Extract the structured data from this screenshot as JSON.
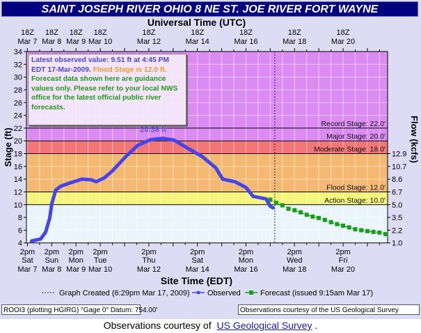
{
  "title": "SAINT JOSEPH RIVER OHIO 8 NE ST. JOE RIVER FORT WAYNE",
  "info": {
    "observed": "Latest observed value: 9.51 ft at 4:45 PM EDT 17-Mar-2009.",
    "flood": "Flood Stage is 12.0 ft.",
    "disclaimer": "Forecast data shown here are guidance values only. Please refer to your local NWS office for the latest official public river forecasts."
  },
  "legend": {
    "created": "Graph Created (6:29pm Mar 17, 2009)",
    "observed": "Observed",
    "forecast": "Forecast (issued 9:15am Mar 17)"
  },
  "footer": {
    "left": "ROOI3 (plotting HGIRG)  \"Gage 0\" Datum: 754.00'",
    "right": "Observations courtesy of the  US Geological Survey",
    "credit_prefix": "Observations courtesy of",
    "credit_link": "US Geological Survey",
    "credit_suffix": "."
  },
  "colors": {
    "observed": "#4545ee",
    "forecast": "#1c9c1c",
    "record": "#da8cf2",
    "major": "#da8cf2",
    "moderate": "#f27676",
    "flood": "#f5b870",
    "action": "#f5f57c",
    "normal": "#e9f5fb"
  },
  "chart_data": {
    "type": "line",
    "title": "SAINT JOSEPH RIVER OHIO 8 NE ST. JOE RIVER FORT WAYNE",
    "top_xlabel": "Universal Time (UTC)",
    "xlabel": "Site Time (EDT)",
    "ylabel": "Stage (ft)",
    "y2label": "Flow (kcfs)",
    "xlim": [
      "2009-03-07T17:00Z",
      "2009-03-22T14:00Z"
    ],
    "ylim": [
      4,
      34
    ],
    "yticks": [
      4,
      6,
      8,
      10,
      12,
      14,
      16,
      18,
      20,
      22,
      24,
      26,
      28,
      30,
      32,
      34
    ],
    "y2ticks": [
      {
        "stage": 4,
        "label": "1.0"
      },
      {
        "stage": 6,
        "label": "2.2"
      },
      {
        "stage": 8,
        "label": "3.5"
      },
      {
        "stage": 10,
        "label": "5.0"
      },
      {
        "stage": 12,
        "label": "6.7"
      },
      {
        "stage": 14,
        "label": "8.6"
      },
      {
        "stage": 16,
        "label": "10.7"
      },
      {
        "stage": 18,
        "label": "12.9"
      }
    ],
    "top_ticks": [
      {
        "t": "2009-03-07T18:00Z",
        "l1": "18Z",
        "l2": "Mar 7"
      },
      {
        "t": "2009-03-08T18:00Z",
        "l1": "18Z",
        "l2": "Mar 8"
      },
      {
        "t": "2009-03-09T18:00Z",
        "l1": "18Z",
        "l2": "Mar 9"
      },
      {
        "t": "2009-03-10T18:00Z",
        "l1": "18Z",
        "l2": "Mar 10"
      },
      {
        "t": "2009-03-12T18:00Z",
        "l1": "18Z",
        "l2": "Mar 12"
      },
      {
        "t": "2009-03-14T18:00Z",
        "l1": "18Z",
        "l2": "Mar 14"
      },
      {
        "t": "2009-03-16T18:00Z",
        "l1": "18Z",
        "l2": "Mar 16"
      },
      {
        "t": "2009-03-18T18:00Z",
        "l1": "18Z",
        "l2": "Mar 18"
      },
      {
        "t": "2009-03-20T18:00Z",
        "l1": "18Z",
        "l2": "Mar 20"
      }
    ],
    "bottom_ticks": [
      {
        "t": "2009-03-07T18:00Z",
        "l1": "2pm",
        "l2": "Sat",
        "l3": "Mar 7"
      },
      {
        "t": "2009-03-08T18:00Z",
        "l1": "2pm",
        "l2": "Sun",
        "l3": "Mar 8"
      },
      {
        "t": "2009-03-09T18:00Z",
        "l1": "2pm",
        "l2": "Mon",
        "l3": "Mar 9"
      },
      {
        "t": "2009-03-10T18:00Z",
        "l1": "2pm",
        "l2": "Tue",
        "l3": "Mar 10"
      },
      {
        "t": "2009-03-12T18:00Z",
        "l1": "2pm",
        "l2": "Thu",
        "l3": "Mar 12"
      },
      {
        "t": "2009-03-14T18:00Z",
        "l1": "2pm",
        "l2": "Sat",
        "l3": "Mar 14"
      },
      {
        "t": "2009-03-16T18:00Z",
        "l1": "2pm",
        "l2": "Mon",
        "l3": "Mar 16"
      },
      {
        "t": "2009-03-18T18:00Z",
        "l1": "2pm",
        "l2": "Wed",
        "l3": "Mar 18"
      },
      {
        "t": "2009-03-20T18:00Z",
        "l1": "2pm",
        "l2": "Fri",
        "l3": "Mar 20"
      }
    ],
    "stages": [
      {
        "name": "record",
        "label": "Record Stage: 22.0'",
        "value": 22
      },
      {
        "name": "major",
        "label": "Major Stage: 20.0'",
        "value": 20
      },
      {
        "name": "moderate",
        "label": "Moderate Stage: 18.0'",
        "value": 18
      },
      {
        "name": "flood",
        "label": "Flood Stage: 12.0'",
        "value": 12
      },
      {
        "name": "action",
        "label": "Action Stage: 10.0'",
        "value": 10
      }
    ],
    "graph_created": "2009-03-17T22:29Z",
    "peak": {
      "t": "2009-03-13T08:00Z",
      "value": 20.38,
      "label": "20.38 ft"
    },
    "grid": true,
    "series": [
      {
        "name": "Observed",
        "points": [
          [
            "2009-03-07T22:00Z",
            4.3
          ],
          [
            "2009-03-08T07:00Z",
            4.6
          ],
          [
            "2009-03-08T12:00Z",
            5.7
          ],
          [
            "2009-03-08T16:00Z",
            7.9
          ],
          [
            "2009-03-08T18:00Z",
            10.1
          ],
          [
            "2009-03-08T22:00Z",
            12.3
          ],
          [
            "2009-03-09T03:00Z",
            12.9
          ],
          [
            "2009-03-09T12:00Z",
            13.4
          ],
          [
            "2009-03-10T00:00Z",
            14.0
          ],
          [
            "2009-03-10T09:00Z",
            13.9
          ],
          [
            "2009-03-10T14:00Z",
            13.6
          ],
          [
            "2009-03-10T22:00Z",
            14.2
          ],
          [
            "2009-03-11T06:00Z",
            15.3
          ],
          [
            "2009-03-11T19:00Z",
            17.5
          ],
          [
            "2009-03-12T07:00Z",
            19.3
          ],
          [
            "2009-03-12T20:00Z",
            20.2
          ],
          [
            "2009-03-13T08:00Z",
            20.38
          ],
          [
            "2009-03-13T19:00Z",
            20.1
          ],
          [
            "2009-03-14T09:00Z",
            18.8
          ],
          [
            "2009-03-14T23:00Z",
            17.5
          ],
          [
            "2009-03-15T12:00Z",
            15.8
          ],
          [
            "2009-03-15T19:00Z",
            14.0
          ],
          [
            "2009-03-16T07:00Z",
            13.6
          ],
          [
            "2009-03-16T18:00Z",
            12.7
          ],
          [
            "2009-03-17T01:00Z",
            11.3
          ],
          [
            "2009-03-17T14:00Z",
            10.9
          ],
          [
            "2009-03-17T18:00Z",
            9.75
          ],
          [
            "2009-03-17T20:45Z",
            9.51
          ]
        ]
      },
      {
        "name": "Forecast",
        "points": [
          [
            "2009-03-17T18:00Z",
            10.78
          ],
          [
            "2009-03-18T00:00Z",
            10.27
          ],
          [
            "2009-03-18T06:00Z",
            9.9
          ],
          [
            "2009-03-18T12:00Z",
            9.35
          ],
          [
            "2009-03-18T18:00Z",
            9.13
          ],
          [
            "2009-03-19T00:00Z",
            8.8
          ],
          [
            "2009-03-19T06:00Z",
            8.42
          ],
          [
            "2009-03-19T12:00Z",
            8.13
          ],
          [
            "2009-03-19T18:00Z",
            7.91
          ],
          [
            "2009-03-20T00:00Z",
            7.61
          ],
          [
            "2009-03-20T06:00Z",
            7.25
          ],
          [
            "2009-03-20T12:00Z",
            6.95
          ],
          [
            "2009-03-20T18:00Z",
            6.7
          ],
          [
            "2009-03-21T00:00Z",
            6.43
          ],
          [
            "2009-03-21T06:00Z",
            6.14
          ],
          [
            "2009-03-21T12:00Z",
            5.99
          ],
          [
            "2009-03-21T18:00Z",
            5.85
          ],
          [
            "2009-03-22T00:00Z",
            5.73
          ],
          [
            "2009-03-22T06:00Z",
            5.62
          ],
          [
            "2009-03-22T12:00Z",
            5.37
          ]
        ]
      }
    ]
  }
}
